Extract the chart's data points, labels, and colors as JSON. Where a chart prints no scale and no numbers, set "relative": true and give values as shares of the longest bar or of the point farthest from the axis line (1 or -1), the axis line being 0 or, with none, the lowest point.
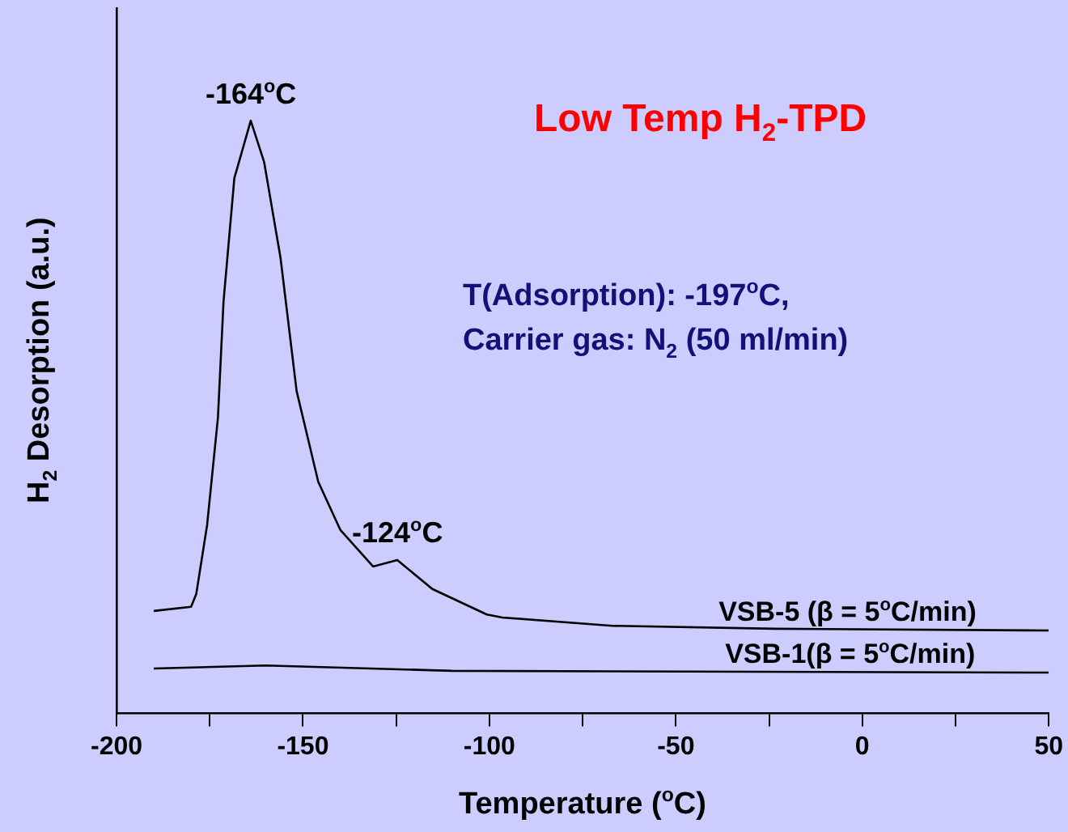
{
  "chart_data": {
    "type": "line",
    "title": "Low Temp H$_{2}$-TPD",
    "xlabel": "Temperature ($^{o}$C)",
    "ylabel": "H$_{2}$ Desorption (a.u.)",
    "relative": true,
    "xlim": [
      -200,
      50
    ],
    "xticks": [
      -200,
      {
        "value": -175,
        "label": null
      },
      -150,
      {
        "value": -125,
        "label": null
      },
      -100,
      {
        "value": -75,
        "label": null
      },
      -50,
      {
        "value": -25,
        "label": null
      },
      0,
      {
        "value": 25,
        "label": null
      },
      50
    ],
    "tick_labels": "x",
    "grid": false,
    "legend": false,
    "marker": "none",
    "line_style": "solid",
    "annotations": [
      {
        "text": "-164$^{o}$C",
        "x": -164,
        "y": 1
      },
      {
        "text": "-124$^{o}$C",
        "x": -124.7,
        "y": 0.259
      },
      "T(Adsorption): -197$^{o}$C,",
      "Carrier gas: N$_{2}$ (50 ml/min)"
    ],
    "series": [
      {
        "name": "VSB-5 (β = 5$^{o}$C/min)",
        "color": "#000000",
        "x": [
          -190,
          -180,
          -178.6,
          -175.7,
          -172.8,
          -171.3,
          -168.4,
          -164,
          -160.4,
          -156,
          -151.7,
          -145.9,
          -140,
          -131.2,
          -124.7,
          -115.3,
          -100.7,
          -96.5,
          -67,
          -23.6,
          50
        ],
        "values": [
          0.173,
          0.18,
          0.202,
          0.318,
          0.499,
          0.695,
          0.903,
          1,
          0.93,
          0.768,
          0.544,
          0.391,
          0.31,
          0.248,
          0.259,
          0.21,
          0.167,
          0.162,
          0.148,
          0.143,
          0.14
        ]
      },
      {
        "name": "VSB-1(β = 5$^{o}$C/min)",
        "color": "#000000",
        "x": [
          -190,
          -160,
          -110,
          50
        ],
        "values": [
          0.076,
          0.081,
          0.072,
          0.069
        ]
      }
    ]
  }
}
